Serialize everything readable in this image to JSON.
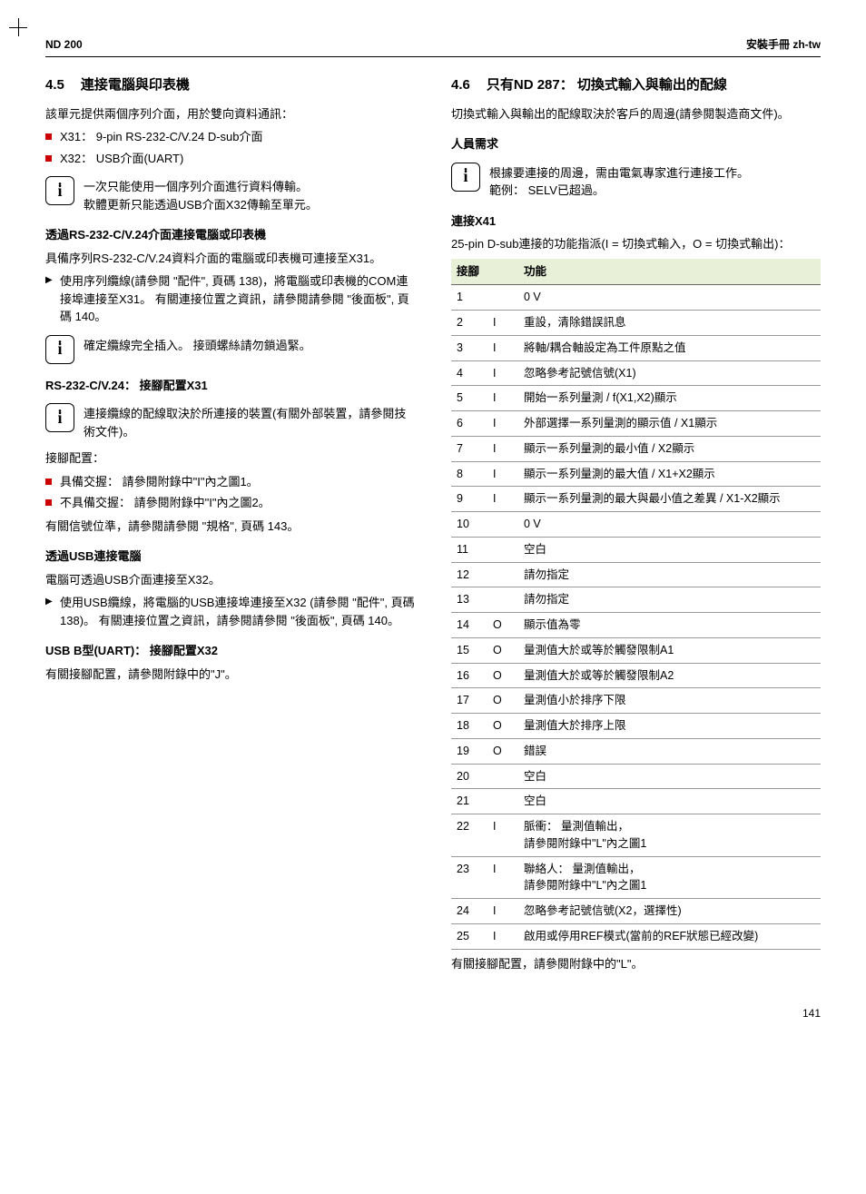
{
  "header": {
    "left": "ND 200",
    "right": "安裝手冊 zh-tw"
  },
  "left": {
    "h45_num": "4.5",
    "h45_title": "連接電腦與印表機",
    "p1": "該單元提供兩個序列介面，用於雙向資料通訊：",
    "li_x31": "X31： 9-pin RS-232-C/V.24 D-sub介面",
    "li_x32": "X32： USB介面(UART)",
    "info1a": "一次只能使用一個序列介面進行資料傳輸。",
    "info1b": "軟體更新只能透過USB介面X32傳輸至單元。",
    "h3_rs": "透過RS-232-C/V.24介面連接電腦或印表機",
    "p2": "具備序列RS-232-C/V.24資料介面的電腦或印表機可連接至X31。",
    "step1": "使用序列纜線(請參閱 \"配件\", 頁碼 138)，將電腦或印表機的COM連接埠連接至X31。 有關連接位置之資訊，請參閱請參閱 \"後面板\", 頁碼 140。",
    "info2": "確定纜線完全插入。 接頭螺絲請勿鎖過緊。",
    "h3_x31": "RS-232-C/V.24： 接腳配置X31",
    "info3": "連接纜線的配線取決於所連接的裝置(有關外部裝置，請參閱技術文件)。",
    "p3": "接腳配置：",
    "li_hs1": "具備交握： 請參閱附錄中\"I\"內之圖1。",
    "li_hs2": "不具備交握： 請參閱附錄中\"I\"內之圖2。",
    "p4": "有關信號位準，請參閱請參閱 \"規格\", 頁碼 143。",
    "h3_usb": "透過USB連接電腦",
    "p5": "電腦可透過USB介面連接至X32。",
    "step2": "使用USB纜線，將電腦的USB連接埠連接至X32 (請參閱 \"配件\", 頁碼 138)。 有關連接位置之資訊，請參閱請參閱 \"後面板\", 頁碼 140。",
    "h3_x32": "USB B型(UART)： 接腳配置X32",
    "p6": "有關接腳配置，請參閱附錄中的\"J\"。"
  },
  "right": {
    "h46_num": "4.6",
    "h46_title": "只有ND 287： 切換式輸入與輸出的配線",
    "p1": "切換式輸入與輸出的配線取決於客戶的周邊(請參閱製造商文件)。",
    "h3_pers": "人員需求",
    "info1a": "根據要連接的周邊，需由電氣專家進行連接工作。",
    "info1b": "範例： SELV已超過。",
    "h3_x41": "連接X41",
    "p2": "25-pin D-sub連接的功能指派(I = 切換式輸入，O = 切換式輸出)：",
    "th1": "接腳",
    "th2": "功能",
    "rows": [
      [
        "1",
        "",
        "0 V"
      ],
      [
        "2",
        "I",
        "重設，清除錯誤訊息"
      ],
      [
        "3",
        "I",
        "將軸/耦合軸設定為工件原點之值"
      ],
      [
        "4",
        "I",
        "忽略參考記號信號(X1)"
      ],
      [
        "5",
        "I",
        "開始一系列量測 / f(X1,X2)顯示"
      ],
      [
        "6",
        "I",
        "外部選擇一系列量測的顯示值 / X1顯示"
      ],
      [
        "7",
        "I",
        "顯示一系列量測的最小值 / X2顯示"
      ],
      [
        "8",
        "I",
        "顯示一系列量測的最大值 / X1+X2顯示"
      ],
      [
        "9",
        "I",
        "顯示一系列量測的最大與最小值之差異 / X1-X2顯示"
      ],
      [
        "10",
        "",
        "0 V"
      ],
      [
        "11",
        "",
        "空白"
      ],
      [
        "12",
        "",
        "請勿指定"
      ],
      [
        "13",
        "",
        "請勿指定"
      ],
      [
        "14",
        "O",
        "顯示值為零"
      ],
      [
        "15",
        "O",
        "量測值大於或等於觸發限制A1"
      ],
      [
        "16",
        "O",
        "量測值大於或等於觸發限制A2"
      ],
      [
        "17",
        "O",
        "量測值小於排序下限"
      ],
      [
        "18",
        "O",
        "量測值大於排序上限"
      ],
      [
        "19",
        "O",
        "錯誤"
      ],
      [
        "20",
        "",
        "空白"
      ],
      [
        "21",
        "",
        "空白"
      ],
      [
        "22",
        "I",
        "脈衝： 量測值輸出，\n請參閱附錄中\"L\"內之圖1"
      ],
      [
        "23",
        "I",
        "聯絡人： 量測值輸出，\n請參閱附錄中\"L\"內之圖1"
      ],
      [
        "24",
        "I",
        "忽略參考記號信號(X2，選擇性)"
      ],
      [
        "25",
        "I",
        "啟用或停用REF模式(當前的REF狀態已經改變)"
      ]
    ],
    "p3": "有關接腳配置，請參閱附錄中的\"L\"。"
  },
  "page_number": "141"
}
